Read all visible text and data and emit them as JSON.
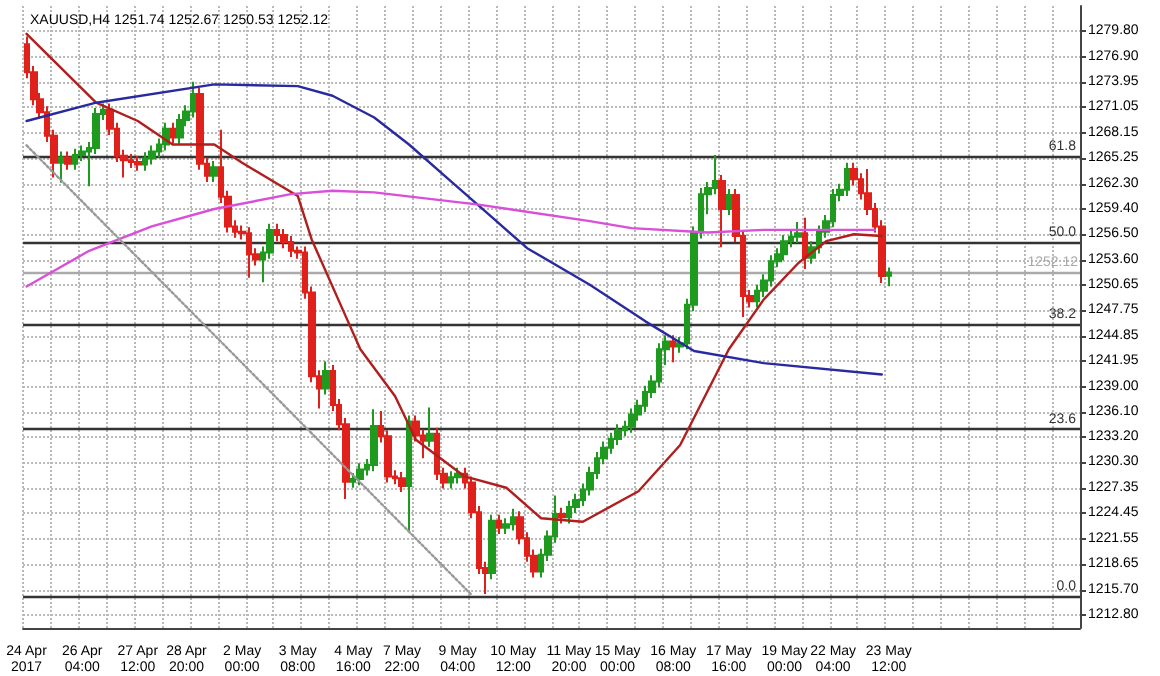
{
  "chart_data": {
    "type": "candlestick",
    "title": "XAUUSD,H4 1251.74 1252.67 1250.53 1252.12",
    "categories": [
      "24 Apr 2017",
      null,
      null,
      null,
      null,
      null,
      null,
      null,
      "26 Apr 04:00",
      null,
      null,
      null,
      null,
      null,
      null,
      null,
      "27 Apr 12:00",
      null,
      null,
      null,
      null,
      null,
      null,
      "28 Apr 20:00",
      null,
      null,
      null,
      null,
      null,
      null,
      null,
      "2 May 00:00",
      null,
      null,
      null,
      null,
      null,
      null,
      null,
      "3 May 08:00",
      null,
      null,
      null,
      null,
      null,
      null,
      null,
      "4 May 16:00",
      null,
      null,
      null,
      null,
      null,
      null,
      "7 May 22:00",
      null,
      null,
      null,
      null,
      null,
      null,
      null,
      "9 May 04:00",
      null,
      null,
      null,
      null,
      null,
      null,
      null,
      "10 May 12:00",
      null,
      null,
      null,
      null,
      null,
      null,
      null,
      "11 May 20:00",
      null,
      null,
      null,
      null,
      null,
      null,
      "15 May 00:00",
      null,
      null,
      null,
      null,
      null,
      null,
      null,
      "16 May 08:00",
      null,
      null,
      null,
      null,
      null,
      null,
      null,
      "17 May 16:00",
      null,
      null,
      null,
      null,
      null,
      null,
      null,
      "19 May 00:00",
      null,
      null,
      null,
      null,
      null,
      null,
      "22 May 04:00",
      null,
      null,
      null,
      null,
      null,
      null,
      null,
      "23 May 12:00",
      null,
      null,
      null,
      null,
      null,
      null,
      null,
      null,
      null,
      null,
      null,
      null,
      null,
      null,
      null,
      null,
      null,
      null,
      null,
      null,
      null,
      null,
      null,
      null,
      null,
      null,
      null
    ],
    "annotations": [
      {
        "text": "61.8",
        "y": 1265.5
      },
      {
        "text": "50.0",
        "y": 1255.6
      },
      {
        "text": "38.2",
        "y": 1246.2
      },
      {
        "text": "23.6",
        "y": 1234.2
      },
      {
        "text": "0.0",
        "y": 1215.0
      }
    ],
    "ohlc": [
      [
        1278.3,
        1279.2,
        1274.4,
        1275.1
      ],
      [
        1275.1,
        1275.8,
        1271.3,
        1272.0
      ],
      [
        1272.0,
        1272.7,
        1269.8,
        1270.5
      ],
      [
        1270.5,
        1271.2,
        1267.1,
        1267.8
      ],
      [
        1267.8,
        1268.5,
        1263.0,
        1264.7
      ],
      [
        1264.7,
        1266.0,
        1262.4,
        1265.3
      ],
      [
        1265.3,
        1266.0,
        1263.9,
        1264.6
      ],
      [
        1264.6,
        1266.3,
        1263.9,
        1265.6
      ],
      [
        1265.6,
        1266.7,
        1264.9,
        1266.0
      ],
      [
        1266.0,
        1267.1,
        1262.0,
        1266.4
      ],
      [
        1266.4,
        1271.0,
        1265.7,
        1270.3
      ],
      [
        1270.3,
        1271.5,
        1269.6,
        1270.8
      ],
      [
        1270.8,
        1271.5,
        1267.9,
        1268.6
      ],
      [
        1268.6,
        1269.3,
        1264.8,
        1265.5
      ],
      [
        1265.5,
        1266.2,
        1263.0,
        1265.0
      ],
      [
        1265.0,
        1265.7,
        1264.1,
        1264.8
      ],
      [
        1264.8,
        1265.5,
        1263.8,
        1264.5
      ],
      [
        1264.5,
        1265.9,
        1263.8,
        1265.2
      ],
      [
        1265.2,
        1266.7,
        1264.5,
        1266.0
      ],
      [
        1266.0,
        1267.5,
        1265.3,
        1266.8
      ],
      [
        1266.8,
        1269.3,
        1266.1,
        1268.6
      ],
      [
        1268.6,
        1269.3,
        1266.9,
        1267.6
      ],
      [
        1267.6,
        1270.3,
        1266.9,
        1269.6
      ],
      [
        1269.6,
        1271.3,
        1268.9,
        1270.6
      ],
      [
        1270.6,
        1274.0,
        1269.9,
        1272.6
      ],
      [
        1272.6,
        1273.3,
        1263.9,
        1264.6
      ],
      [
        1264.6,
        1265.3,
        1262.5,
        1263.2
      ],
      [
        1263.2,
        1264.9,
        1262.5,
        1264.2
      ],
      [
        1264.2,
        1268.5,
        1260.1,
        1260.8
      ],
      [
        1260.8,
        1261.5,
        1256.7,
        1257.4
      ],
      [
        1257.4,
        1258.1,
        1256.1,
        1256.8
      ],
      [
        1256.8,
        1257.5,
        1255.9,
        1256.6
      ],
      [
        1256.6,
        1257.3,
        1251.5,
        1254.2
      ],
      [
        1254.2,
        1254.9,
        1252.9,
        1253.6
      ],
      [
        1253.6,
        1255.1,
        1251.0,
        1254.4
      ],
      [
        1254.4,
        1257.7,
        1253.7,
        1257.0
      ],
      [
        1257.0,
        1257.7,
        1255.7,
        1256.4
      ],
      [
        1256.4,
        1257.1,
        1254.9,
        1255.6
      ],
      [
        1255.6,
        1256.3,
        1253.9,
        1254.6
      ],
      [
        1254.6,
        1255.1,
        1253.7,
        1254.4
      ],
      [
        1254.4,
        1255.1,
        1249.1,
        1249.8
      ],
      [
        1249.8,
        1250.5,
        1239.5,
        1240.2
      ],
      [
        1240.2,
        1240.9,
        1236.5,
        1238.8
      ],
      [
        1238.8,
        1241.9,
        1238.1,
        1240.8
      ],
      [
        1240.8,
        1241.5,
        1236.2,
        1236.9
      ],
      [
        1236.9,
        1237.6,
        1234.0,
        1234.7
      ],
      [
        1234.7,
        1235.4,
        1226.1,
        1228.1
      ],
      [
        1228.1,
        1229.1,
        1227.4,
        1228.4
      ],
      [
        1228.4,
        1230.2,
        1227.7,
        1229.5
      ],
      [
        1229.5,
        1230.7,
        1228.8,
        1230.0
      ],
      [
        1230.0,
        1236.4,
        1229.3,
        1234.5
      ],
      [
        1234.5,
        1236.2,
        1232.6,
        1233.3
      ],
      [
        1233.3,
        1234.0,
        1228.0,
        1228.7
      ],
      [
        1228.7,
        1229.4,
        1227.8,
        1228.5
      ],
      [
        1228.5,
        1229.2,
        1226.9,
        1227.6
      ],
      [
        1227.6,
        1235.7,
        1222.4,
        1235.0
      ],
      [
        1235.0,
        1235.7,
        1232.7,
        1233.4
      ],
      [
        1233.4,
        1234.1,
        1230.8,
        1232.8
      ],
      [
        1232.8,
        1236.6,
        1232.1,
        1233.6
      ],
      [
        1233.6,
        1234.3,
        1228.3,
        1229.0
      ],
      [
        1229.0,
        1229.7,
        1227.3,
        1228.0
      ],
      [
        1228.0,
        1229.3,
        1227.3,
        1228.6
      ],
      [
        1228.6,
        1229.7,
        1227.9,
        1229.0
      ],
      [
        1229.0,
        1229.7,
        1227.3,
        1228.0
      ],
      [
        1228.0,
        1228.7,
        1223.9,
        1224.6
      ],
      [
        1224.6,
        1225.3,
        1217.5,
        1218.2
      ],
      [
        1218.2,
        1218.9,
        1215.2,
        1217.6
      ],
      [
        1217.6,
        1224.3,
        1216.9,
        1223.6
      ],
      [
        1223.6,
        1224.3,
        1222.1,
        1222.8
      ],
      [
        1222.8,
        1223.9,
        1222.1,
        1223.2
      ],
      [
        1223.2,
        1225.0,
        1222.5,
        1224.0
      ],
      [
        1224.0,
        1224.7,
        1220.9,
        1221.6
      ],
      [
        1221.6,
        1222.3,
        1218.9,
        1219.6
      ],
      [
        1219.6,
        1220.3,
        1217.1,
        1217.8
      ],
      [
        1217.8,
        1220.4,
        1217.1,
        1219.7
      ],
      [
        1219.7,
        1222.5,
        1219.0,
        1221.8
      ],
      [
        1221.8,
        1226.5,
        1221.1,
        1224.4
      ],
      [
        1224.4,
        1225.1,
        1223.3,
        1224.0
      ],
      [
        1224.0,
        1225.9,
        1223.3,
        1225.2
      ],
      [
        1225.2,
        1226.7,
        1224.5,
        1226.0
      ],
      [
        1226.0,
        1227.9,
        1225.3,
        1227.2
      ],
      [
        1227.2,
        1229.8,
        1226.5,
        1229.1
      ],
      [
        1229.1,
        1231.5,
        1228.4,
        1230.8
      ],
      [
        1230.8,
        1232.7,
        1230.1,
        1232.0
      ],
      [
        1232.0,
        1233.7,
        1231.3,
        1233.0
      ],
      [
        1233.0,
        1234.7,
        1232.3,
        1234.0
      ],
      [
        1234.0,
        1235.1,
        1233.3,
        1234.4
      ],
      [
        1234.4,
        1236.5,
        1233.7,
        1235.8
      ],
      [
        1235.8,
        1237.5,
        1235.1,
        1236.8
      ],
      [
        1236.8,
        1239.1,
        1236.1,
        1238.4
      ],
      [
        1238.4,
        1240.3,
        1237.7,
        1239.6
      ],
      [
        1239.6,
        1244.0,
        1238.9,
        1243.3
      ],
      [
        1243.3,
        1244.9,
        1241.5,
        1244.2
      ],
      [
        1244.2,
        1244.9,
        1241.8,
        1243.6
      ],
      [
        1243.6,
        1244.7,
        1242.9,
        1244.0
      ],
      [
        1244.0,
        1249.1,
        1243.3,
        1248.4
      ],
      [
        1248.4,
        1257.4,
        1247.7,
        1256.7
      ],
      [
        1256.7,
        1261.8,
        1256.0,
        1261.1
      ],
      [
        1261.1,
        1262.5,
        1258.8,
        1261.8
      ],
      [
        1261.8,
        1265.6,
        1261.1,
        1262.6
      ],
      [
        1262.6,
        1263.3,
        1255.0,
        1259.4
      ],
      [
        1259.4,
        1261.7,
        1258.7,
        1261.0
      ],
      [
        1261.0,
        1261.7,
        1255.6,
        1256.3
      ],
      [
        1256.3,
        1257.0,
        1247.0,
        1249.4
      ],
      [
        1249.4,
        1250.1,
        1248.1,
        1248.8
      ],
      [
        1248.8,
        1250.7,
        1248.1,
        1250.0
      ],
      [
        1250.0,
        1251.9,
        1249.3,
        1251.2
      ],
      [
        1251.2,
        1254.1,
        1250.5,
        1253.4
      ],
      [
        1253.4,
        1254.9,
        1252.7,
        1254.2
      ],
      [
        1254.2,
        1256.4,
        1253.5,
        1255.7
      ],
      [
        1255.7,
        1256.9,
        1255.0,
        1256.2
      ],
      [
        1256.2,
        1257.9,
        1255.5,
        1256.6
      ],
      [
        1256.6,
        1258.4,
        1252.5,
        1253.8
      ],
      [
        1253.8,
        1255.7,
        1253.1,
        1255.0
      ],
      [
        1255.0,
        1257.5,
        1254.3,
        1256.8
      ],
      [
        1256.8,
        1258.7,
        1256.1,
        1258.0
      ],
      [
        1258.0,
        1261.7,
        1257.3,
        1261.0
      ],
      [
        1261.0,
        1262.3,
        1260.3,
        1261.6
      ],
      [
        1261.6,
        1264.7,
        1260.9,
        1264.0
      ],
      [
        1264.0,
        1264.7,
        1262.1,
        1262.8
      ],
      [
        1262.8,
        1263.5,
        1260.5,
        1261.2
      ],
      [
        1261.2,
        1264.0,
        1258.7,
        1259.4
      ],
      [
        1259.4,
        1260.1,
        1256.7,
        1257.4
      ],
      [
        1257.4,
        1258.1,
        1250.9,
        1251.7
      ],
      [
        1251.74,
        1252.67,
        1250.53,
        1252.12
      ],
      null,
      null,
      null,
      null,
      null,
      null,
      null,
      null,
      null,
      null,
      null,
      null,
      null,
      null,
      null,
      null,
      null,
      null,
      null,
      null,
      null,
      null,
      null,
      null,
      null,
      null,
      null
    ],
    "series": [
      {
        "type": "line",
        "color": "#b01e1e",
        "values": [
          1279.5,
          null,
          null,
          null,
          null,
          null,
          null,
          null,
          null,
          null,
          1271.6,
          null,
          null,
          null,
          null,
          null,
          1269.5,
          null,
          null,
          null,
          null,
          1266.8,
          null,
          null,
          null,
          null,
          null,
          1266.8,
          null,
          null,
          null,
          1264.7,
          null,
          null,
          null,
          null,
          null,
          null,
          null,
          1260.9,
          null,
          1255.9,
          null,
          null,
          null,
          null,
          1246.9,
          null,
          1243.3,
          null,
          null,
          null,
          null,
          1237.9,
          null,
          null,
          1232.9,
          null,
          null,
          null,
          null,
          null,
          null,
          1228.7,
          null,
          null,
          null,
          null,
          null,
          1227.4,
          null,
          null,
          null,
          null,
          1223.9,
          null,
          null,
          null,
          null,
          null,
          1223.5,
          null,
          null,
          null,
          null,
          null,
          null,
          null,
          1227.0,
          null,
          null,
          null,
          null,
          null,
          1232.3,
          null,
          null,
          null,
          null,
          null,
          null,
          1243.3,
          null,
          null,
          null,
          null,
          1249.0,
          null,
          null,
          null,
          null,
          1253.2,
          null,
          null,
          null,
          1255.7,
          null,
          null,
          null,
          1256.5,
          null,
          null,
          null,
          1256.3,
          null,
          null,
          null,
          null,
          null,
          null,
          null,
          null,
          null,
          null,
          null,
          null,
          null,
          null,
          null,
          null,
          null,
          null,
          null,
          null,
          null,
          null,
          null,
          null,
          null,
          null,
          null,
          null
        ]
      },
      {
        "type": "line",
        "color": "#2a2aa0",
        "values": [
          1269.5,
          null,
          null,
          null,
          null,
          null,
          null,
          null,
          null,
          null,
          1271.6,
          null,
          null,
          null,
          null,
          null,
          null,
          null,
          null,
          null,
          null,
          null,
          null,
          null,
          null,
          null,
          null,
          1273.7,
          null,
          null,
          null,
          null,
          null,
          null,
          null,
          null,
          null,
          null,
          null,
          1273.5,
          null,
          null,
          null,
          null,
          1272.4,
          null,
          null,
          null,
          null,
          null,
          1269.9,
          null,
          null,
          null,
          null,
          1266.8,
          null,
          null,
          null,
          null,
          null,
          1262.6,
          null,
          null,
          null,
          null,
          null,
          1258.4,
          null,
          null,
          null,
          null,
          1254.9,
          null,
          null,
          null,
          null,
          null,
          null,
          null,
          null,
          1250.7,
          null,
          null,
          null,
          null,
          null,
          null,
          null,
          1246.5,
          null,
          null,
          null,
          null,
          null,
          null,
          1243.1,
          null,
          null,
          null,
          null,
          null,
          null,
          null,
          null,
          null,
          1241.7,
          null,
          null,
          null,
          null,
          null,
          null,
          null,
          null,
          null,
          null,
          null,
          null,
          null,
          null,
          null,
          null,
          1240.4,
          null,
          null,
          null,
          null,
          null,
          null,
          null,
          null,
          null,
          null,
          null,
          null,
          null,
          null,
          null,
          null,
          null,
          null,
          null,
          null,
          null,
          null,
          null,
          null,
          null,
          null,
          null,
          null
        ]
      },
      {
        "type": "line",
        "color": "#d94fd9",
        "values": [
          1250.5,
          null,
          null,
          null,
          null,
          null,
          null,
          null,
          null,
          1254.6,
          null,
          null,
          null,
          null,
          null,
          null,
          null,
          null,
          1257.4,
          null,
          null,
          null,
          null,
          null,
          null,
          null,
          null,
          1259.4,
          null,
          null,
          null,
          null,
          null,
          null,
          null,
          null,
          null,
          null,
          1261.1,
          null,
          null,
          null,
          null,
          null,
          1261.5,
          null,
          null,
          null,
          null,
          null,
          1261.3,
          null,
          null,
          null,
          null,
          null,
          null,
          null,
          null,
          null,
          null,
          null,
          null,
          null,
          null,
          1259.9,
          null,
          null,
          null,
          null,
          null,
          null,
          null,
          null,
          null,
          null,
          null,
          null,
          null,
          null,
          null,
          1258.0,
          null,
          null,
          null,
          null,
          null,
          1257.2,
          null,
          null,
          null,
          null,
          null,
          null,
          null,
          null,
          null,
          null,
          1256.7,
          null,
          null,
          null,
          null,
          null,
          null,
          null,
          1257.0,
          null,
          null,
          null,
          null,
          null,
          null,
          null,
          null,
          null,
          null,
          null,
          null,
          null,
          null,
          null,
          1257.0,
          null,
          null,
          null,
          null,
          null,
          null,
          null,
          null,
          null,
          null,
          null,
          null,
          null,
          null,
          null,
          null,
          null,
          null,
          null,
          null,
          null,
          null,
          null,
          null,
          null,
          null,
          null,
          null,
          null
        ]
      },
      {
        "type": "line",
        "color": "#999999",
        "line_style": "dotted",
        "values": [
          1266.7,
          null,
          null,
          null,
          null,
          null,
          null,
          null,
          null,
          null,
          null,
          null,
          null,
          null,
          null,
          null,
          null,
          null,
          null,
          null,
          null,
          null,
          null,
          null,
          null,
          null,
          null,
          null,
          null,
          null,
          null,
          null,
          null,
          null,
          null,
          null,
          null,
          null,
          null,
          null,
          null,
          null,
          null,
          null,
          null,
          null,
          null,
          null,
          null,
          null,
          null,
          null,
          null,
          null,
          null,
          null,
          null,
          null,
          null,
          null,
          null,
          null,
          null,
          null,
          1215.1,
          null,
          null,
          null,
          null,
          null,
          null,
          null,
          null,
          null,
          null,
          null,
          null,
          null,
          null,
          null,
          null,
          null,
          null,
          null,
          null,
          null,
          null,
          null,
          null,
          null,
          null,
          null,
          null,
          null,
          null,
          null,
          null,
          null,
          null,
          null,
          null,
          null,
          null,
          null,
          null,
          null,
          null,
          null,
          null,
          null,
          null,
          null,
          null,
          null,
          null,
          null,
          null,
          null,
          null,
          null,
          null,
          null,
          null,
          null,
          null,
          null,
          null,
          null,
          null,
          null,
          null,
          null,
          null,
          null,
          null,
          null,
          null,
          null,
          null,
          null,
          null,
          null,
          null,
          null,
          null,
          null,
          null,
          null,
          null,
          null,
          null,
          null
        ]
      }
    ],
    "ylim": [
      1211.3,
      1282.7
    ],
    "yticks": [
      {
        "value": 1212.8,
        "label": "1212.80"
      },
      {
        "value": 1215.7,
        "label": "1215.70"
      },
      {
        "value": 1218.65,
        "label": "1218.65"
      },
      {
        "value": 1221.55,
        "label": "1221.55"
      },
      {
        "value": 1224.45,
        "label": "1224.45"
      },
      {
        "value": 1227.35,
        "label": "1227.35"
      },
      {
        "value": 1230.3,
        "label": "1230.30"
      },
      {
        "value": 1233.2,
        "label": "1233.20"
      },
      {
        "value": 1236.1,
        "label": "1236.10"
      },
      {
        "value": 1239.0,
        "label": "1239.00"
      },
      {
        "value": 1241.95,
        "label": "1241.95"
      },
      {
        "value": 1244.85,
        "label": "1244.85"
      },
      {
        "value": 1247.75,
        "label": "1247.75"
      },
      {
        "value": 1250.65,
        "label": "1250.65"
      },
      {
        "value": 1253.6,
        "label": "1253.60"
      },
      {
        "value": 1256.5,
        "label": "1256.50"
      },
      {
        "value": 1259.4,
        "label": "1259.40"
      },
      {
        "value": 1262.3,
        "label": "1262.30"
      },
      {
        "value": 1265.25,
        "label": "1265.25"
      },
      {
        "value": 1268.15,
        "label": "1268.15"
      },
      {
        "value": 1271.05,
        "label": "1271.05"
      },
      {
        "value": 1273.95,
        "label": "1273.95"
      },
      {
        "value": 1276.9,
        "label": "1276.90"
      },
      {
        "value": 1279.8,
        "label": "1279.80"
      }
    ],
    "ref_lines": [
      {
        "axis": "y",
        "value": 1265.5,
        "color": "#333333"
      },
      {
        "axis": "y",
        "value": 1255.6,
        "color": "#333333"
      },
      {
        "axis": "y",
        "value": 1246.2,
        "color": "#333333"
      },
      {
        "axis": "y",
        "value": 1234.2,
        "color": "#333333"
      },
      {
        "axis": "y",
        "value": 1215.0,
        "color": "#333333"
      },
      {
        "axis": "y",
        "value": 1252.12,
        "label": "1252.12",
        "color": "#aaaaaa"
      }
    ],
    "grid": true
  }
}
